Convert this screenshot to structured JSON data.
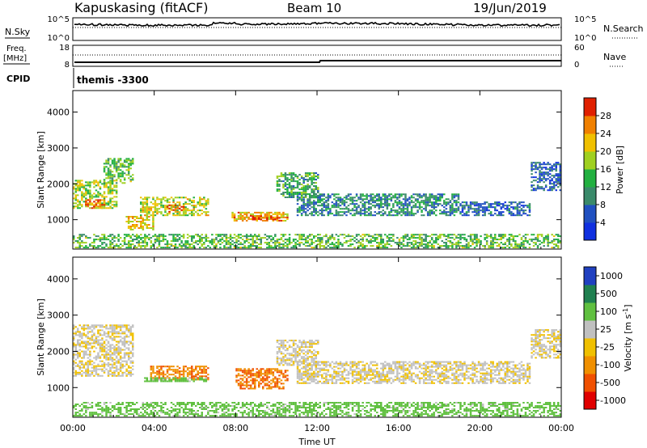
{
  "header": {
    "station": "Kapuskasing (fitACF)",
    "beam": "Beam 10",
    "date": "19/Jun/2019"
  },
  "strip_sky": {
    "left_label": "N.Sky",
    "left_ticks": [
      "10^5",
      "10^0"
    ],
    "right_ticks": [
      "10^5",
      "10^0"
    ],
    "right_label": "N.Search"
  },
  "strip_freq": {
    "left_label_1": "Freq.",
    "left_label_2": "[MHz]",
    "left_ticks": [
      "18",
      "8"
    ],
    "right_ticks": [
      "60",
      "0"
    ],
    "right_label": "Nave"
  },
  "cpid": {
    "label": "CPID",
    "value": "themis -3300"
  },
  "colors": {
    "power": [
      "#1030e0",
      "#2050c0",
      "#3a8a6a",
      "#22b040",
      "#a0d020",
      "#f0c000",
      "#f08000",
      "#e02000"
    ],
    "velocity": [
      "#e00000",
      "#f05000",
      "#f09000",
      "#f0c000",
      "#c0c0c0",
      "#60c040",
      "#208050",
      "#2040c0"
    ]
  },
  "chart_data": [
    {
      "type": "heatmap",
      "name_printed": "",
      "x": [
        "00:00",
        "04:00",
        "08:00",
        "12:00",
        "16:00",
        "20:00",
        "00:00"
      ],
      "xlim": [
        0,
        24
      ],
      "ylabel": "Slant Range [km]",
      "yticks": [
        "1000",
        "2000",
        "3000",
        "4000"
      ],
      "ylim": [
        180,
        4600
      ],
      "colorbar": {
        "label": "Power [dB]",
        "ticks": [
          "4",
          "8",
          "12",
          "16",
          "20",
          "24",
          "28"
        ],
        "range": [
          0,
          30
        ]
      },
      "echo_regions": [
        {
          "t0": 0.0,
          "t1": 2.2,
          "r0": 1300,
          "r1": 2100,
          "v": 17
        },
        {
          "t0": 0.6,
          "t1": 1.6,
          "r0": 1300,
          "r1": 1550,
          "v": 25
        },
        {
          "t0": 1.5,
          "t1": 3.0,
          "r0": 2000,
          "r1": 2700,
          "v": 14
        },
        {
          "t0": 3.3,
          "t1": 6.6,
          "r0": 1100,
          "r1": 1600,
          "v": 18
        },
        {
          "t0": 4.6,
          "t1": 5.4,
          "r0": 1200,
          "r1": 1400,
          "v": 25
        },
        {
          "t0": 2.6,
          "t1": 4.0,
          "r0": 700,
          "r1": 1100,
          "v": 20
        },
        {
          "t0": 7.8,
          "t1": 10.5,
          "r0": 950,
          "r1": 1200,
          "v": 22
        },
        {
          "t0": 8.8,
          "t1": 10.2,
          "r0": 980,
          "r1": 1080,
          "v": 28
        },
        {
          "t0": 10.0,
          "t1": 12.0,
          "r0": 1600,
          "r1": 2300,
          "v": 12
        },
        {
          "t0": 11.0,
          "t1": 19.0,
          "r0": 1100,
          "r1": 1700,
          "v": 9
        },
        {
          "t0": 19.0,
          "t1": 22.5,
          "r0": 1100,
          "r1": 1500,
          "v": 7
        },
        {
          "t0": 22.5,
          "t1": 24.0,
          "r0": 1800,
          "r1": 2600,
          "v": 6
        },
        {
          "t0": 0.0,
          "t1": 24.0,
          "r0": 200,
          "r1": 600,
          "v": 14
        }
      ]
    },
    {
      "type": "heatmap",
      "x": [
        "00:00",
        "04:00",
        "08:00",
        "12:00",
        "16:00",
        "20:00",
        "00:00"
      ],
      "xlim": [
        0,
        24
      ],
      "xlabel": "Time UT",
      "ylabel": "Slant Range [km]",
      "yticks": [
        "1000",
        "2000",
        "3000",
        "4000"
      ],
      "ylim": [
        180,
        4600
      ],
      "colorbar": {
        "label": "Velocity [m s-1]",
        "ticks": [
          "1000",
          "500",
          "100",
          "25",
          "-25",
          "-100",
          "-500",
          "-1000"
        ]
      },
      "echo_regions": [
        {
          "t0": 0.0,
          "t1": 3.0,
          "r0": 1300,
          "r1": 2700,
          "v": 0
        },
        {
          "t0": 3.8,
          "t1": 6.6,
          "r0": 1200,
          "r1": 1600,
          "v": -80
        },
        {
          "t0": 3.5,
          "t1": 6.5,
          "r0": 1150,
          "r1": 1250,
          "v": 60
        },
        {
          "t0": 8.0,
          "t1": 10.5,
          "r0": 950,
          "r1": 1500,
          "v": -90
        },
        {
          "t0": 10.0,
          "t1": 12.0,
          "r0": 1600,
          "r1": 2300,
          "v": 0
        },
        {
          "t0": 11.0,
          "t1": 22.5,
          "r0": 1100,
          "r1": 1700,
          "v": 0
        },
        {
          "t0": 22.5,
          "t1": 24.0,
          "r0": 1800,
          "r1": 2600,
          "v": 0
        },
        {
          "t0": 0.0,
          "t1": 24.0,
          "r0": 200,
          "r1": 600,
          "v": 60
        }
      ]
    }
  ]
}
